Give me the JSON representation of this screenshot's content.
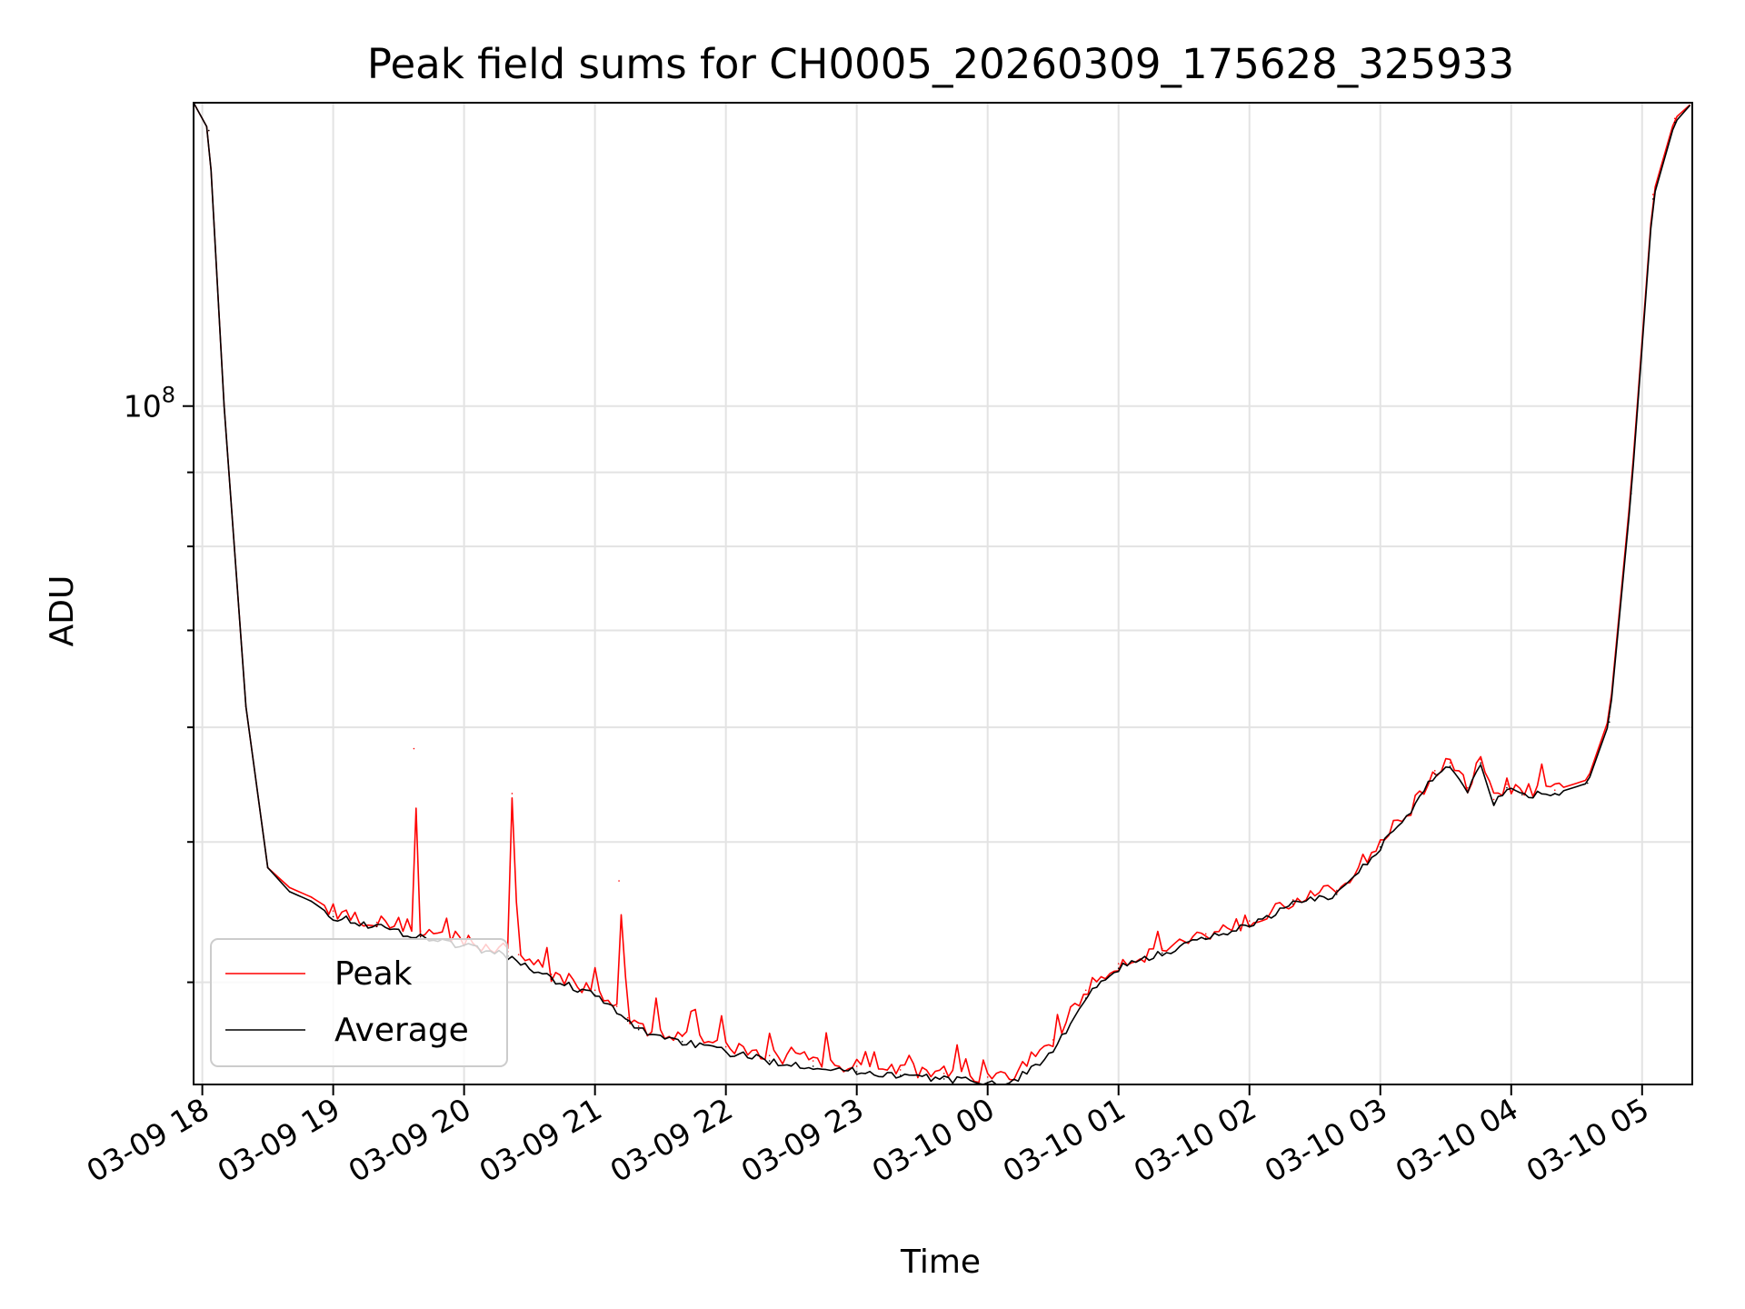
{
  "chart_data": {
    "type": "line",
    "title": "Peak field sums for CH0005_20260309_175628_325933",
    "xlabel": "Time",
    "ylabel": "ADU",
    "yscale": "log",
    "ylim": [
      34000000,
      162000000
    ],
    "xlim": [
      "2026-03-09 17:56",
      "2026-03-10 05:23"
    ],
    "grid": true,
    "legend_placement": "lower-left",
    "x_ticks": [
      "03-09 18",
      "03-09 19",
      "03-09 20",
      "03-09 21",
      "03-09 22",
      "03-09 23",
      "03-10 00",
      "03-10 01",
      "03-10 02",
      "03-10 03",
      "03-10 04",
      "03-10 05"
    ],
    "y_tick_labels": [
      {
        "value": 100000000,
        "base": "10",
        "exp": "8"
      }
    ],
    "series": [
      {
        "name": "Peak",
        "color": "#ff0000",
        "x": [
          "2026-03-09 17:56",
          "2026-03-09 18:03",
          "2026-03-09 18:10",
          "2026-03-09 18:20",
          "2026-03-09 18:30",
          "2026-03-09 18:40",
          "2026-03-09 18:50",
          "2026-03-09 19:00",
          "2026-03-09 19:20",
          "2026-03-09 19:36",
          "2026-03-09 19:37",
          "2026-03-09 19:40",
          "2026-03-09 20:00",
          "2026-03-09 20:20",
          "2026-03-09 20:22",
          "2026-03-09 20:25",
          "2026-03-09 20:40",
          "2026-03-09 21:00",
          "2026-03-09 21:10",
          "2026-03-09 21:11",
          "2026-03-09 21:15",
          "2026-03-09 21:20",
          "2026-03-09 21:40",
          "2026-03-09 22:00",
          "2026-03-09 22:20",
          "2026-03-09 22:40",
          "2026-03-09 23:00",
          "2026-03-09 23:20",
          "2026-03-09 23:40",
          "2026-03-10 00:00",
          "2026-03-10 00:10",
          "2026-03-10 00:30",
          "2026-03-10 00:45",
          "2026-03-10 01:00",
          "2026-03-10 01:20",
          "2026-03-10 01:40",
          "2026-03-10 02:00",
          "2026-03-10 02:20",
          "2026-03-10 02:40",
          "2026-03-10 03:00",
          "2026-03-10 03:15",
          "2026-03-10 03:25",
          "2026-03-10 03:32",
          "2026-03-10 03:40",
          "2026-03-10 03:46",
          "2026-03-10 03:52",
          "2026-03-10 03:58",
          "2026-03-10 04:05",
          "2026-03-10 04:20",
          "2026-03-10 04:35",
          "2026-03-10 04:45",
          "2026-03-10 04:55",
          "2026-03-10 05:05",
          "2026-03-10 05:15",
          "2026-03-10 05:23"
        ],
        "y": [
          162000000,
          155000000,
          100000000,
          62000000,
          48000000,
          46500000,
          45800000,
          44800000,
          44000000,
          43800000,
          58000000,
          43400000,
          42800000,
          42000000,
          54000000,
          41800000,
          40500000,
          39500000,
          38500000,
          47000000,
          37800000,
          37300000,
          36700000,
          36100000,
          35600000,
          35300000,
          35000000,
          34800000,
          34600000,
          34400000,
          34300000,
          36500000,
          39500000,
          41200000,
          42200000,
          43200000,
          44100000,
          45600000,
          46300000,
          50000000,
          53000000,
          56000000,
          56700000,
          54500000,
          57000000,
          53500000,
          54800000,
          54200000,
          54300000,
          55200000,
          61000000,
          88000000,
          140000000,
          158000000,
          162000000
        ]
      },
      {
        "name": "Average",
        "color": "#000000",
        "x": [
          "2026-03-09 17:56",
          "2026-03-09 18:03",
          "2026-03-09 18:10",
          "2026-03-09 18:20",
          "2026-03-09 18:30",
          "2026-03-09 18:40",
          "2026-03-09 18:50",
          "2026-03-09 19:00",
          "2026-03-09 19:20",
          "2026-03-09 19:40",
          "2026-03-09 20:00",
          "2026-03-09 20:20",
          "2026-03-09 20:40",
          "2026-03-09 21:00",
          "2026-03-09 21:15",
          "2026-03-09 21:20",
          "2026-03-09 21:40",
          "2026-03-09 22:00",
          "2026-03-09 22:20",
          "2026-03-09 22:40",
          "2026-03-09 23:00",
          "2026-03-09 23:20",
          "2026-03-09 23:40",
          "2026-03-10 00:00",
          "2026-03-10 00:10",
          "2026-03-10 00:30",
          "2026-03-10 00:45",
          "2026-03-10 01:00",
          "2026-03-10 01:20",
          "2026-03-10 01:40",
          "2026-03-10 02:00",
          "2026-03-10 02:20",
          "2026-03-10 02:40",
          "2026-03-10 03:00",
          "2026-03-10 03:15",
          "2026-03-10 03:25",
          "2026-03-10 03:32",
          "2026-03-10 03:40",
          "2026-03-10 03:46",
          "2026-03-10 03:52",
          "2026-03-10 03:58",
          "2026-03-10 04:05",
          "2026-03-10 04:20",
          "2026-03-10 04:35",
          "2026-03-10 04:45",
          "2026-03-10 04:55",
          "2026-03-10 05:05",
          "2026-03-10 05:15",
          "2026-03-10 05:23"
        ],
        "y": [
          162000000,
          155000000,
          100000000,
          62000000,
          48000000,
          46200000,
          45500000,
          44400000,
          43700000,
          43000000,
          42400000,
          41700000,
          40200000,
          39200000,
          37600000,
          37100000,
          36400000,
          35800000,
          35300000,
          35000000,
          34700000,
          34500000,
          34300000,
          34100000,
          34000000,
          35800000,
          39000000,
          40900000,
          41900000,
          42900000,
          43800000,
          45300000,
          46000000,
          49600000,
          52700000,
          55700000,
          56400000,
          54200000,
          56700000,
          53200000,
          54500000,
          53900000,
          54000000,
          54900000,
          60500000,
          87000000,
          139000000,
          157000000,
          162000000
        ]
      }
    ]
  }
}
